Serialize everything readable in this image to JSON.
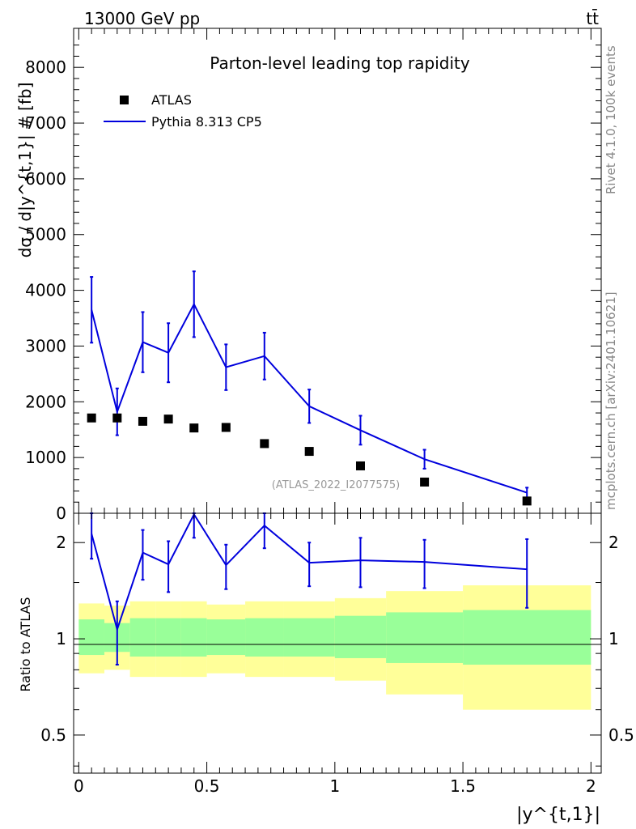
{
  "header": {
    "left_label": "13000 GeV pp",
    "right_label": "tt̄"
  },
  "side_labels": {
    "rivet": "Rivet 4.1.0,  100k events",
    "mcplots": "mcplots.cern.ch [arXiv:2401.10621]"
  },
  "colors": {
    "mc_line": "#0000dd",
    "data_marker": "#000000",
    "band_inner": "#99ff99",
    "band_outer": "#ffff99"
  },
  "chart_data": [
    {
      "type": "scatter",
      "panel": "main",
      "title": "Parton-level leading top rapidity",
      "ylabel": "dσ / d|y^{t,1}| # [fb]",
      "ylim": [
        0,
        8700
      ],
      "yticks": [
        0,
        1000,
        2000,
        3000,
        4000,
        5000,
        6000,
        7000,
        8000
      ],
      "xlim": [
        -0.02,
        2.04
      ],
      "analysis_label": "(ATLAS_2022_I2077575)",
      "legend": {
        "placement": "top-left",
        "entries": [
          "ATLAS",
          "Pythia 8.313 CP5"
        ]
      },
      "series": [
        {
          "name": "ATLAS",
          "style": "markers",
          "x": [
            0.05,
            0.15,
            0.25,
            0.35,
            0.45,
            0.575,
            0.725,
            0.9,
            1.1,
            1.35,
            1.75
          ],
          "y": [
            1710,
            1710,
            1650,
            1690,
            1530,
            1540,
            1250,
            1110,
            850,
            560,
            220
          ]
        },
        {
          "name": "Pythia 8.313 CP5",
          "style": "line",
          "x": [
            0.05,
            0.15,
            0.25,
            0.35,
            0.45,
            0.575,
            0.725,
            0.9,
            1.1,
            1.35,
            1.75
          ],
          "y": [
            3650,
            1820,
            3070,
            2880,
            3750,
            2620,
            2820,
            1920,
            1490,
            970,
            370
          ],
          "err": [
            590,
            420,
            540,
            530,
            590,
            410,
            420,
            300,
            260,
            170,
            90
          ]
        }
      ]
    },
    {
      "type": "line",
      "panel": "ratio",
      "ylabel": "Ratio to ATLAS",
      "xlabel": "|y^{t,1}|",
      "ylim": [
        0.38,
        2.47
      ],
      "log_y": true,
      "yticks": [
        0.5,
        1,
        2
      ],
      "xlim": [
        -0.02,
        2.04
      ],
      "xticks": [
        0,
        0.5,
        1,
        1.5,
        2
      ],
      "bin_edges": [
        0,
        0.1,
        0.2,
        0.3,
        0.4,
        0.5,
        0.65,
        0.8,
        1.0,
        1.2,
        1.5,
        2.0
      ],
      "band_inner": [
        [
          0.89,
          1.15
        ],
        [
          0.91,
          1.12
        ],
        [
          0.88,
          1.16
        ],
        [
          0.88,
          1.16
        ],
        [
          0.88,
          1.16
        ],
        [
          0.89,
          1.15
        ],
        [
          0.88,
          1.16
        ],
        [
          0.88,
          1.16
        ],
        [
          0.87,
          1.18
        ],
        [
          0.84,
          1.21
        ],
        [
          0.83,
          1.23
        ]
      ],
      "band_outer": [
        [
          0.78,
          1.29
        ],
        [
          0.8,
          1.27
        ],
        [
          0.76,
          1.31
        ],
        [
          0.76,
          1.31
        ],
        [
          0.76,
          1.31
        ],
        [
          0.78,
          1.28
        ],
        [
          0.76,
          1.31
        ],
        [
          0.76,
          1.31
        ],
        [
          0.74,
          1.34
        ],
        [
          0.67,
          1.41
        ],
        [
          0.6,
          1.47
        ]
      ],
      "series": [
        {
          "name": "Pythia 8.313 CP5 / ATLAS",
          "x": [
            0.05,
            0.15,
            0.25,
            0.35,
            0.45,
            0.575,
            0.725,
            0.9,
            1.1,
            1.35,
            1.75
          ],
          "y": [
            2.13,
            1.07,
            1.86,
            1.71,
            2.45,
            1.7,
            2.26,
            1.73,
            1.76,
            1.74,
            1.65
          ],
          "err": [
            0.35,
            0.24,
            0.33,
            0.31,
            0.38,
            0.27,
            0.34,
            0.27,
            0.31,
            0.3,
            0.4
          ]
        }
      ]
    }
  ]
}
